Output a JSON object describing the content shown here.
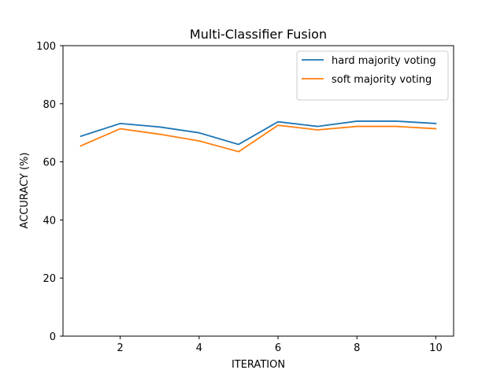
{
  "chart_data": {
    "type": "line",
    "title": "Multi-Classifier Fusion",
    "xlabel": "ITERATION",
    "ylabel": "ACCURACY (%)",
    "x": [
      1,
      2,
      3,
      4,
      5,
      6,
      7,
      8,
      9,
      10
    ],
    "xticks": [
      2,
      4,
      6,
      8,
      10
    ],
    "yticks": [
      0,
      20,
      40,
      60,
      80,
      100
    ],
    "xlim": [
      0.55,
      10.45
    ],
    "ylim": [
      0,
      100
    ],
    "grid": false,
    "legend_position": "top-right",
    "series": [
      {
        "name": "hard majority voting",
        "color": "#1f77b4",
        "values": [
          68.8,
          73.2,
          72.0,
          70.0,
          66.0,
          73.8,
          72.2,
          74.0,
          74.0,
          73.2
        ]
      },
      {
        "name": "soft majority voting",
        "color": "#ff7f0e",
        "values": [
          65.5,
          71.4,
          69.5,
          67.2,
          63.5,
          72.6,
          71.0,
          72.2,
          72.2,
          71.4
        ]
      }
    ]
  }
}
